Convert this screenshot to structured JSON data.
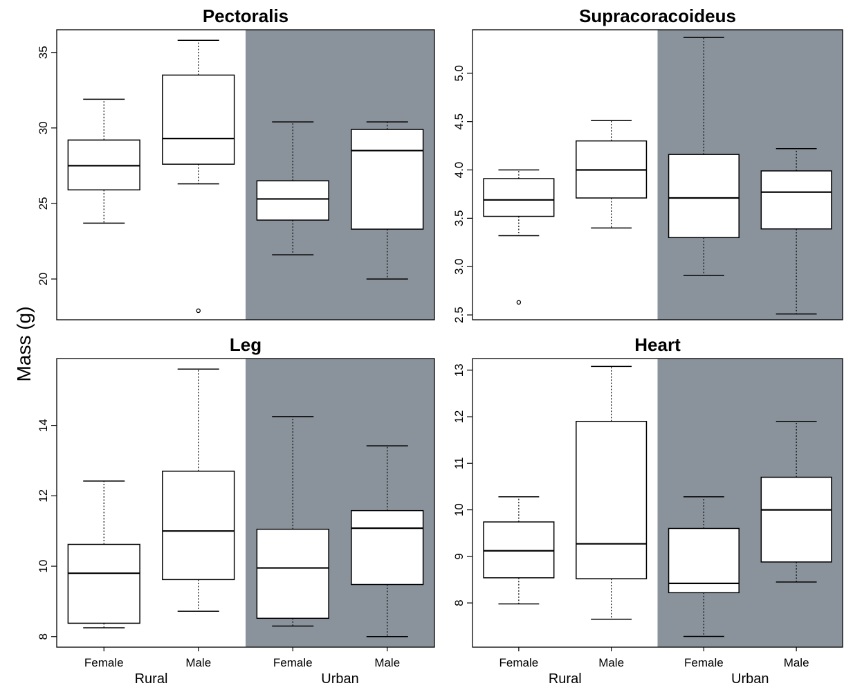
{
  "figure": {
    "ylabel": "Mass (g)",
    "xlabel_groups": [
      "Rural",
      "Urban"
    ],
    "shade_color": "#8a939b"
  },
  "chart_data": [
    {
      "type": "box",
      "title": "Pectoralis",
      "categories": [
        "Female",
        "Male",
        "Female",
        "Male"
      ],
      "groups": [
        "Rural",
        "Rural",
        "Urban",
        "Urban"
      ],
      "show_xticks": false,
      "ylim": [
        17.3,
        36.5
      ],
      "yticks": [
        20,
        25,
        30,
        35
      ],
      "boxes": [
        {
          "whisker_low": 23.7,
          "q1": 25.9,
          "median": 27.5,
          "q3": 29.2,
          "whisker_high": 31.9,
          "outliers": []
        },
        {
          "whisker_low": 26.3,
          "q1": 27.6,
          "median": 29.3,
          "q3": 33.5,
          "whisker_high": 35.8,
          "outliers": [
            17.9
          ]
        },
        {
          "whisker_low": 21.6,
          "q1": 23.9,
          "median": 25.3,
          "q3": 26.5,
          "whisker_high": 30.4,
          "outliers": []
        },
        {
          "whisker_low": 20.0,
          "q1": 23.3,
          "median": 28.5,
          "q3": 29.9,
          "whisker_high": 30.4,
          "outliers": []
        }
      ]
    },
    {
      "type": "box",
      "title": "Supracoracoideus",
      "categories": [
        "Female",
        "Male",
        "Female",
        "Male"
      ],
      "groups": [
        "Rural",
        "Rural",
        "Urban",
        "Urban"
      ],
      "show_xticks": false,
      "ylim": [
        2.45,
        5.45
      ],
      "yticks": [
        2.5,
        3.0,
        3.5,
        4.0,
        4.5,
        5.0
      ],
      "ytick_labels": [
        "2.5",
        "3.0",
        "3.5",
        "4.0",
        "4.5",
        "5.0"
      ],
      "boxes": [
        {
          "whisker_low": 3.32,
          "q1": 3.52,
          "median": 3.69,
          "q3": 3.91,
          "whisker_high": 4.0,
          "outliers": [
            2.63
          ]
        },
        {
          "whisker_low": 3.4,
          "q1": 3.71,
          "median": 4.0,
          "q3": 4.3,
          "whisker_high": 4.51,
          "outliers": []
        },
        {
          "whisker_low": 2.91,
          "q1": 3.3,
          "median": 3.71,
          "q3": 4.16,
          "whisker_high": 5.37,
          "outliers": []
        },
        {
          "whisker_low": 2.51,
          "q1": 3.39,
          "median": 3.77,
          "q3": 3.99,
          "whisker_high": 4.22,
          "outliers": []
        }
      ]
    },
    {
      "type": "box",
      "title": "Leg",
      "categories": [
        "Female",
        "Male",
        "Female",
        "Male"
      ],
      "groups": [
        "Rural",
        "Rural",
        "Urban",
        "Urban"
      ],
      "show_xticks": true,
      "ylim": [
        7.7,
        15.9
      ],
      "yticks": [
        8,
        10,
        12,
        14
      ],
      "boxes": [
        {
          "whisker_low": 8.25,
          "q1": 8.38,
          "median": 9.8,
          "q3": 10.62,
          "whisker_high": 12.42,
          "outliers": []
        },
        {
          "whisker_low": 8.72,
          "q1": 9.62,
          "median": 11.0,
          "q3": 12.7,
          "whisker_high": 15.6,
          "outliers": []
        },
        {
          "whisker_low": 8.3,
          "q1": 8.52,
          "median": 9.95,
          "q3": 11.05,
          "whisker_high": 14.25,
          "outliers": []
        },
        {
          "whisker_low": 8.0,
          "q1": 9.48,
          "median": 11.08,
          "q3": 11.58,
          "whisker_high": 13.42,
          "outliers": []
        }
      ]
    },
    {
      "type": "box",
      "title": "Heart",
      "categories": [
        "Female",
        "Male",
        "Female",
        "Male"
      ],
      "groups": [
        "Rural",
        "Rural",
        "Urban",
        "Urban"
      ],
      "show_xticks": true,
      "ylim": [
        7.05,
        13.25
      ],
      "yticks": [
        8,
        9,
        10,
        11,
        12,
        13
      ],
      "boxes": [
        {
          "whisker_low": 7.98,
          "q1": 8.54,
          "median": 9.12,
          "q3": 9.74,
          "whisker_high": 10.28,
          "outliers": []
        },
        {
          "whisker_low": 7.65,
          "q1": 8.52,
          "median": 9.27,
          "q3": 11.9,
          "whisker_high": 13.08,
          "outliers": []
        },
        {
          "whisker_low": 7.28,
          "q1": 8.22,
          "median": 8.42,
          "q3": 9.6,
          "whisker_high": 10.28,
          "outliers": []
        },
        {
          "whisker_low": 8.45,
          "q1": 8.88,
          "median": 10.0,
          "q3": 10.7,
          "whisker_high": 11.9,
          "outliers": []
        }
      ]
    }
  ]
}
